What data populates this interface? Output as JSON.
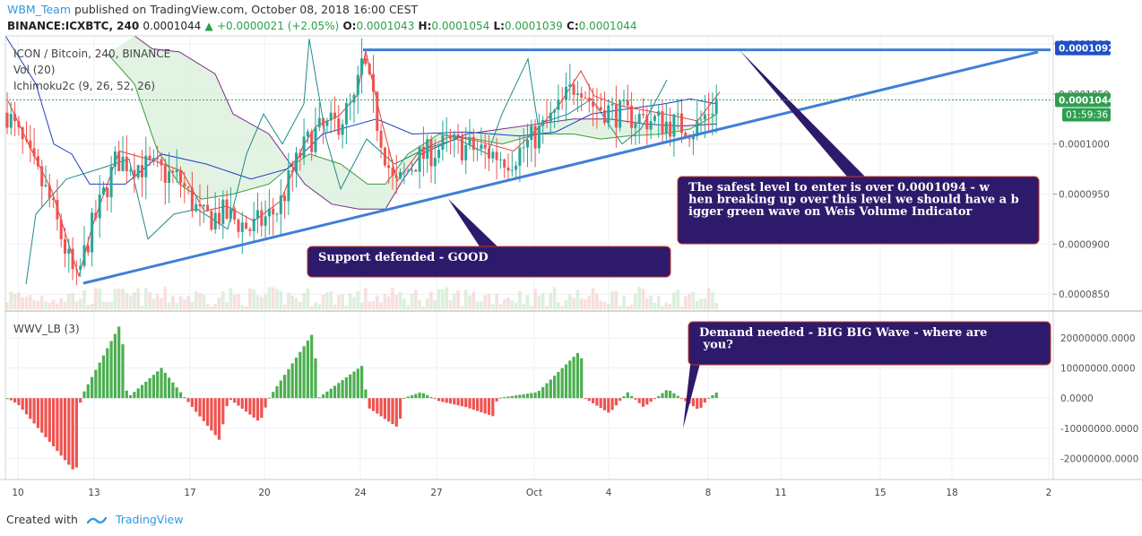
{
  "header": {
    "user": "WBM_Team",
    "published": "published on TradingView.com, October 08, 2018 16:00 CEST",
    "symbol_line": "BINANCE:ICXBTC, 240",
    "last": "0.0001044",
    "change": "+0.0000021 (+2.05%)",
    "ohlc": {
      "o_label": "O:",
      "o": "0.0001043",
      "h_label": "H:",
      "h": "0.0001054",
      "l_label": "L:",
      "l": "0.0001039",
      "c_label": "C:",
      "c": "0.0001044"
    }
  },
  "legend": {
    "pair": "ICON / Bitcoin, 240, BINANCE",
    "vol": "Vol (20)",
    "ichimoku": "Ichimoku2c (9, 26, 52, 26)",
    "wwv": "WWV_LB (3)"
  },
  "price_scale": {
    "ticks": [
      "0.0001100",
      "0.0001050",
      "0.0001000",
      "0.0000950",
      "0.0000900",
      "0.0000850"
    ],
    "badge_1092": "0.0001092",
    "badge_price": "0.0001044",
    "badge_time": "01:59:36"
  },
  "wwv_scale": {
    "ticks": [
      "20000000.0000",
      "10000000.0000",
      "0.0000",
      "-10000000.0000",
      "-20000000.0000"
    ]
  },
  "time_axis": [
    "10",
    "13",
    "17",
    "20",
    "24",
    "27",
    "Oct",
    "4",
    "8",
    "11",
    "15",
    "18",
    "2"
  ],
  "annotations": {
    "safest": "The safest level to enter is over 0.0001094 - when breaking up over this level we should have a bigger green wave on Weis Volume Indicator",
    "support": "Support defended  - GOOD",
    "demand": "Demand needed - BIG BIG Wave - where are you?"
  },
  "footer": {
    "created": "Created with",
    "brand": "TradingView"
  },
  "colors": {
    "up": "#26a69a",
    "down": "#ef5350",
    "trend": "#3f7fd4",
    "box": "#2e1a6a",
    "box_border": "#c0392b",
    "wwv_up": "#4caf50",
    "wwv_down": "#ef5350",
    "tenkan": "#e53935",
    "kijun": "#1e3fbf",
    "chikou": "#1f8a8a",
    "spanA": "#3c9a3c",
    "spanB": "#7b2a8a",
    "cloud": "#d9efd9"
  },
  "chart_data": [
    {
      "type": "candlestick",
      "title": "ICON / Bitcoin, 240, BINANCE",
      "ylim": [
        8.35e-05,
        0.0001108
      ],
      "x_ticks": [
        "10",
        "13",
        "17",
        "20",
        "24",
        "27",
        "Oct",
        "4",
        "8",
        "11",
        "15",
        "18",
        "2"
      ],
      "last_close": 0.0001044,
      "horizontal_level": 0.0001094,
      "support_trendline_from_to": [
        [
          8.55e-05,
          0.0001094
        ]
      ],
      "series": [
        {
          "name": "Vol (20)",
          "kind": "volume"
        },
        {
          "name": "Ichimoku2c (9, 26, 52, 26)",
          "kind": "indicator"
        }
      ]
    },
    {
      "type": "bar",
      "title": "WWV_LB (3)",
      "ylim": [
        -27000000,
        28000000
      ],
      "values_approx_peaks": {
        "min": -25000000,
        "max": 25000000
      }
    }
  ]
}
